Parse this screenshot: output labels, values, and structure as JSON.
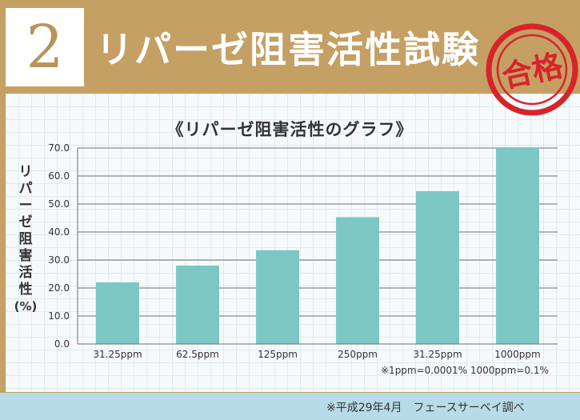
{
  "header": {
    "number": "2",
    "title": "リパーゼ阻害活性試験",
    "stamp_text": "合格"
  },
  "chart_data": {
    "type": "bar",
    "title": "《リパーゼ阻害活性のグラフ》",
    "ylabel": "リパーゼ阻害活性(%)",
    "categories": [
      "31.25ppm",
      "62.5ppm",
      "125ppm",
      "250ppm",
      "31.25ppm",
      "1000ppm"
    ],
    "values": [
      22.0,
      28.0,
      33.5,
      45.3,
      54.6,
      70.0
    ],
    "ylim": [
      0,
      70
    ],
    "yticks": [
      "0.0",
      "10.0",
      "20.0",
      "30.0",
      "40.0",
      "50.0",
      "60.0",
      "70.0"
    ],
    "grid": true,
    "bar_color": "#7cc7c3"
  },
  "footnote": "※1ppm=0.0001% 1000ppm=0.1%",
  "source": "※平成29年4月　フェースサーベイ調べ"
}
